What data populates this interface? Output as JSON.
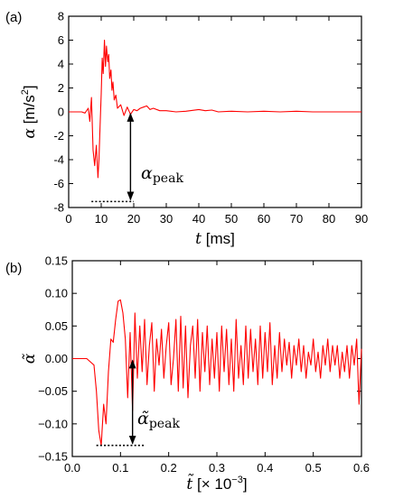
{
  "chart_data": [
    {
      "type": "line",
      "panel_label": "(a)",
      "ylabel_symbol": "α",
      "ylabel_unit": " [m/s",
      "ylabel_sup": "2",
      "ylabel_close": "]",
      "xlabel_symbol": "t",
      "xlabel_unit": " [ms]",
      "xlim": [
        0,
        90
      ],
      "ylim": [
        -8,
        8
      ],
      "xticks": [
        0,
        10,
        20,
        30,
        40,
        50,
        60,
        70,
        80,
        90
      ],
      "yticks": [
        -8,
        -6,
        -4,
        -2,
        0,
        2,
        4,
        6,
        8
      ],
      "color": "#ff0000",
      "annotation_symbol": "α",
      "annotation_sub": "peak",
      "peak_marker": {
        "x_range": [
          7,
          20
        ],
        "y_low": -7.5,
        "y_high": 0,
        "x": 19
      },
      "series": [
        {
          "x": [
            0,
            2,
            4,
            5,
            6,
            6.5,
            7,
            7.5,
            8,
            8.5,
            9,
            9.3,
            9.6,
            10,
            10.3,
            10.6,
            11,
            11.3,
            11.6,
            12,
            12.3,
            12.6,
            13,
            13.3,
            13.6,
            14,
            14.5,
            15,
            16,
            17,
            18,
            19,
            20,
            21,
            22,
            23,
            24,
            25,
            26,
            28,
            30,
            33,
            36,
            40,
            42,
            44,
            46,
            50,
            55,
            60,
            65,
            70,
            75,
            80,
            85,
            90
          ],
          "y": [
            0,
            0,
            0,
            -0.1,
            0.3,
            -0.8,
            1.2,
            -3.2,
            -4.5,
            -2.8,
            -5.5,
            -4.0,
            -1.5,
            1.5,
            4.5,
            3.2,
            6.0,
            3.8,
            5.5,
            4.2,
            4.8,
            2.8,
            3.5,
            1.8,
            2.5,
            1.0,
            1.4,
            0.3,
            0.6,
            -0.3,
            0.4,
            -0.2,
            0.2,
            0.1,
            0.3,
            0.4,
            0.5,
            0.2,
            0.3,
            0.1,
            0.1,
            0.0,
            0.05,
            0.2,
            0.1,
            0.15,
            0.0,
            0.05,
            0.0,
            0.05,
            0.0,
            0.05,
            0.0,
            0.0,
            0.0,
            0.0
          ]
        }
      ]
    },
    {
      "type": "line",
      "panel_label": "(b)",
      "ylabel_symbol": "α̃",
      "xlabel_symbol": "t̃",
      "xlabel_unit": " [× 10",
      "xlabel_sup": "−3",
      "xlabel_close": "]",
      "xlim": [
        0,
        0.6
      ],
      "ylim": [
        -0.15,
        0.15
      ],
      "xticks": [
        0.0,
        0.1,
        0.2,
        0.3,
        0.4,
        0.5,
        0.6
      ],
      "xtick_labels": [
        "0.0",
        "0.1",
        "0.2",
        "0.3",
        "0.4",
        "0.5",
        "0.6"
      ],
      "yticks": [
        -0.15,
        -0.1,
        -0.05,
        0.0,
        0.05,
        0.1,
        0.15
      ],
      "ytick_labels": [
        "−0.15",
        "−0.10",
        "−0.05",
        "0.00",
        "0.05",
        "0.10",
        "0.15"
      ],
      "color": "#ff0000",
      "annotation_symbol": "α̃",
      "annotation_sub": "peak",
      "peak_marker": {
        "x_range": [
          0.05,
          0.15
        ],
        "y_low": -0.133,
        "y_high": 0.0,
        "x": 0.125
      },
      "series": [
        {
          "x": [
            0,
            0.03,
            0.045,
            0.05,
            0.055,
            0.06,
            0.065,
            0.07,
            0.075,
            0.08,
            0.085,
            0.09,
            0.095,
            0.1,
            0.105,
            0.11,
            0.115,
            0.12,
            0.125,
            0.13,
            0.135,
            0.14,
            0.145,
            0.15,
            0.155,
            0.16,
            0.165,
            0.17,
            0.175,
            0.18,
            0.185,
            0.19,
            0.195,
            0.2,
            0.205,
            0.21,
            0.215,
            0.22,
            0.225,
            0.23,
            0.235,
            0.24,
            0.245,
            0.25,
            0.255,
            0.26,
            0.265,
            0.27,
            0.275,
            0.28,
            0.285,
            0.29,
            0.295,
            0.3,
            0.305,
            0.31,
            0.315,
            0.32,
            0.325,
            0.33,
            0.335,
            0.34,
            0.345,
            0.35,
            0.355,
            0.36,
            0.365,
            0.37,
            0.375,
            0.38,
            0.385,
            0.39,
            0.395,
            0.4,
            0.405,
            0.41,
            0.415,
            0.42,
            0.425,
            0.43,
            0.435,
            0.44,
            0.445,
            0.45,
            0.455,
            0.46,
            0.465,
            0.47,
            0.475,
            0.48,
            0.485,
            0.49,
            0.495,
            0.5,
            0.505,
            0.51,
            0.515,
            0.52,
            0.525,
            0.53,
            0.535,
            0.54,
            0.545,
            0.55,
            0.555,
            0.56,
            0.565,
            0.57,
            0.575,
            0.58,
            0.585,
            0.59,
            0.595,
            0.6
          ],
          "y": [
            0.0,
            0.0,
            -0.01,
            -0.05,
            -0.11,
            -0.133,
            -0.07,
            -0.1,
            -0.02,
            0.03,
            0.025,
            0.06,
            0.088,
            0.09,
            0.07,
            0.03,
            -0.06,
            0.04,
            -0.08,
            0.07,
            -0.03,
            0.05,
            -0.02,
            0.06,
            -0.04,
            0.02,
            0.055,
            -0.05,
            0.03,
            -0.01,
            0.045,
            -0.03,
            0.02,
            0.055,
            -0.04,
            0.0,
            0.06,
            -0.05,
            0.065,
            -0.045,
            0.05,
            -0.06,
            0.02,
            0.05,
            -0.03,
            0.06,
            -0.05,
            0.04,
            -0.02,
            0.05,
            -0.04,
            0.03,
            -0.03,
            0.04,
            -0.05,
            0.05,
            -0.02,
            0.045,
            -0.04,
            0.03,
            -0.05,
            0.06,
            -0.03,
            0.02,
            -0.04,
            0.05,
            -0.03,
            0.045,
            -0.02,
            0.03,
            -0.04,
            0.05,
            -0.03,
            0.04,
            -0.02,
            0.055,
            -0.04,
            0.02,
            -0.03,
            0.04,
            -0.02,
            0.03,
            -0.01,
            0.025,
            -0.03,
            0.02,
            -0.01,
            0.03,
            -0.02,
            0.02,
            -0.03,
            0.01,
            -0.01,
            0.03,
            -0.02,
            0.01,
            -0.03,
            0.02,
            -0.01,
            0.03,
            -0.02,
            0.02,
            -0.01,
            0.02,
            -0.03,
            0.01,
            -0.02,
            0.02,
            -0.03,
            0.02,
            -0.01,
            0.03,
            -0.07,
            0.015
          ]
        }
      ]
    }
  ]
}
